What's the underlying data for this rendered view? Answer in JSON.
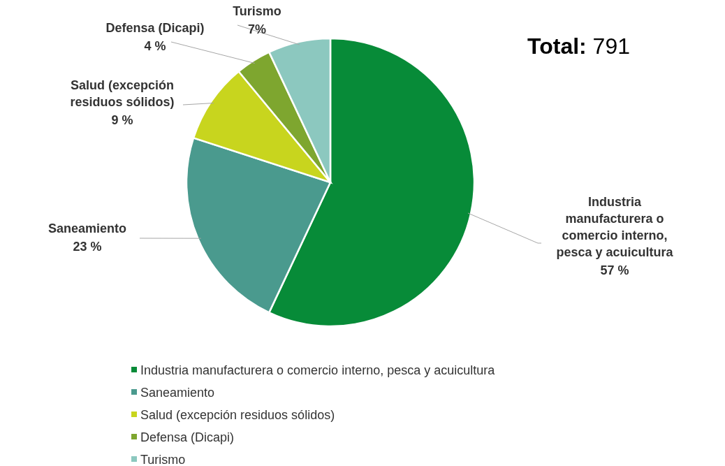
{
  "chart_data": {
    "type": "pie",
    "categories": [
      "Industria manufacturera o comercio interno, pesca y acuicultura",
      "Saneamiento",
      "Salud (excepción residuos sólidos)",
      "Defensa (Dicapi)",
      "Turismo"
    ],
    "values": [
      57,
      23,
      9,
      4,
      7
    ],
    "value_labels": [
      "57 %",
      "23 %",
      "9 %",
      "4 %",
      "7%"
    ],
    "colors": [
      "#078b38",
      "#4a9a8e",
      "#c8d51e",
      "#7ea62f",
      "#8cc8bf"
    ],
    "annotations": [
      "Total: 791"
    ],
    "legend": "bottom"
  }
}
